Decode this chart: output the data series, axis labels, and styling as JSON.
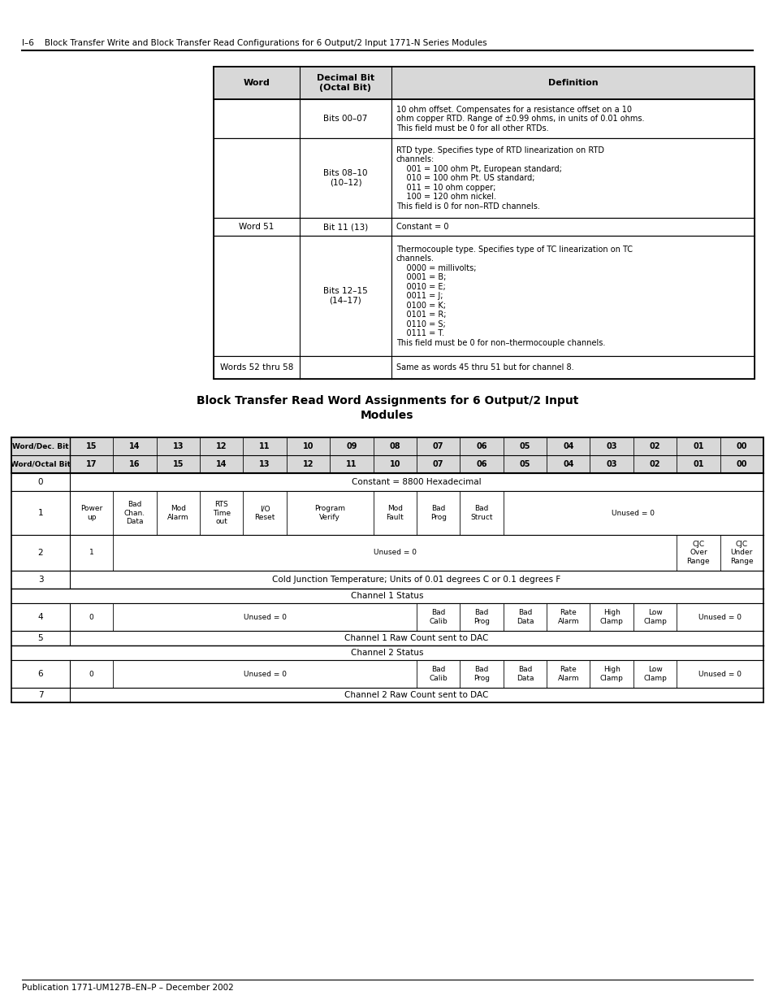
{
  "page_header": "I–6    Block Transfer Write and Block Transfer Read Configurations for 6 Output/2 Input 1771-N Series Modules",
  "page_footer": "Publication 1771-UM127B–EN–P – December 2002",
  "bg_color": "#ffffff",
  "table1": {
    "col_headers": [
      "Word",
      "Decimal Bit\n(Octal Bit)",
      "Definition"
    ],
    "rows": [
      {
        "word": "",
        "bit": "Bits 00–07",
        "definition": "10 ohm offset. Compensates for a resistance offset on a 10\nohm copper RTD. Range of ±0.99 ohms, in units of 0.01 ohms.\nThis field must be 0 for all other RTDs."
      },
      {
        "word": "",
        "bit": "Bits 08–10\n(10–12)",
        "definition": "RTD type. Specifies type of RTD linearization on RTD\nchannels:\n    001 = 100 ohm Pt, European standard;\n    010 = 100 ohm Pt. US standard;\n    011 = 10 ohm copper;\n    100 = 120 ohm nickel.\nThis field is 0 for non–RTD channels."
      },
      {
        "word": "Word 51",
        "bit": "Bit 11 (13)",
        "definition": "Constant = 0"
      },
      {
        "word": "",
        "bit": "Bits 12–15\n(14–17)",
        "definition": "Thermocouple type. Specifies type of TC linearization on TC\nchannels.\n    0000 = millivolts;\n    0001 = B;\n    0010 = E;\n    0011 = J;\n    0100 = K;\n    0101 = R;\n    0110 = S;\n    0111 = T.\nThis field must be 0 for non–thermocouple channels."
      },
      {
        "word": "Words 52 thru 58",
        "bit": "",
        "definition": "Same as words 45 thru 51 but for channel 8."
      }
    ]
  },
  "table2_title_line1": "Block Transfer Read Word Assignments for 6 Output/2 Input",
  "table2_title_line2": "Modules",
  "table2": {
    "header_row1": [
      "Word/Dec. Bit",
      "15",
      "14",
      "13",
      "12",
      "11",
      "10",
      "09",
      "08",
      "07",
      "06",
      "05",
      "04",
      "03",
      "02",
      "01",
      "00"
    ],
    "header_row2": [
      "Word/Octal Bit",
      "17",
      "16",
      "15",
      "14",
      "13",
      "12",
      "11",
      "10",
      "07",
      "06",
      "05",
      "04",
      "03",
      "02",
      "01",
      "00"
    ]
  }
}
